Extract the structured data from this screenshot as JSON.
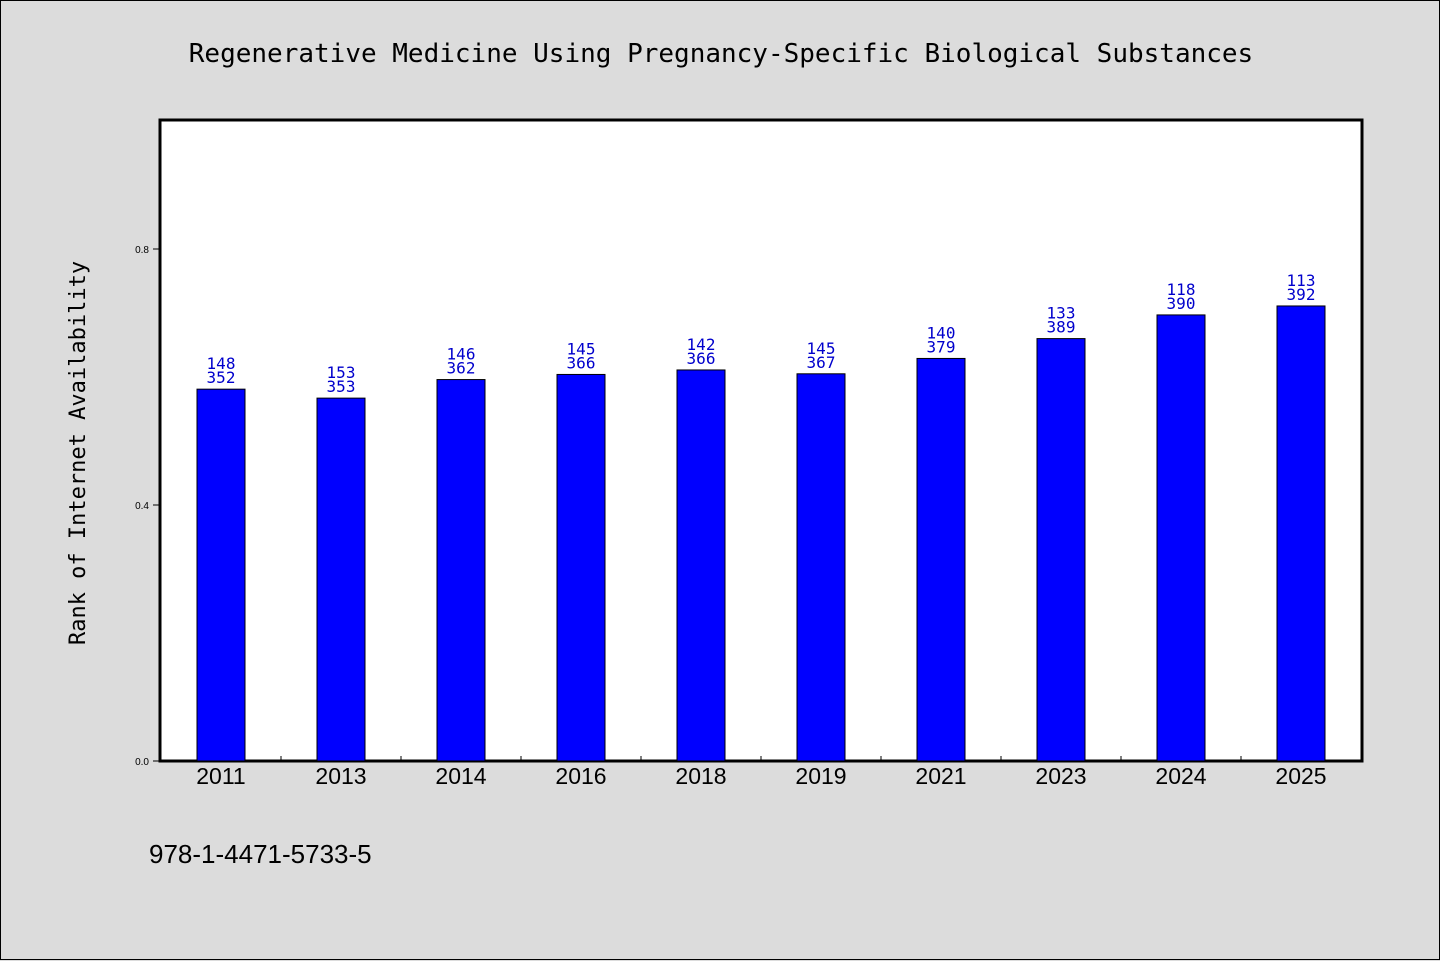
{
  "chart_data": {
    "type": "bar",
    "title": "Regenerative Medicine Using Pregnancy-Specific Biological Substances",
    "xlabel": "",
    "ylabel": "Rank of Internet Availability",
    "categories": [
      "2011",
      "2013",
      "2014",
      "2016",
      "2018",
      "2019",
      "2021",
      "2023",
      "2024",
      "2025"
    ],
    "values": [
      0.581,
      0.567,
      0.596,
      0.604,
      0.611,
      0.605,
      0.629,
      0.66,
      0.697,
      0.711
    ],
    "bar_labels": [
      [
        "148",
        "352"
      ],
      [
        "153",
        "353"
      ],
      [
        "146",
        "362"
      ],
      [
        "145",
        "366"
      ],
      [
        "142",
        "366"
      ],
      [
        "145",
        "367"
      ],
      [
        "140",
        "379"
      ],
      [
        "133",
        "389"
      ],
      [
        "118",
        "390"
      ],
      [
        "113",
        "392"
      ]
    ],
    "ylim": [
      0,
      1.0
    ],
    "yticks": [
      "0.0",
      "0.4",
      "0.8"
    ],
    "ytick_values": [
      0.0,
      0.4,
      0.8
    ],
    "grid": false,
    "bar_color": "#0000ff",
    "label_color": "#0000cc"
  },
  "footer": {
    "isbn": "978-1-4471-5733-5"
  }
}
